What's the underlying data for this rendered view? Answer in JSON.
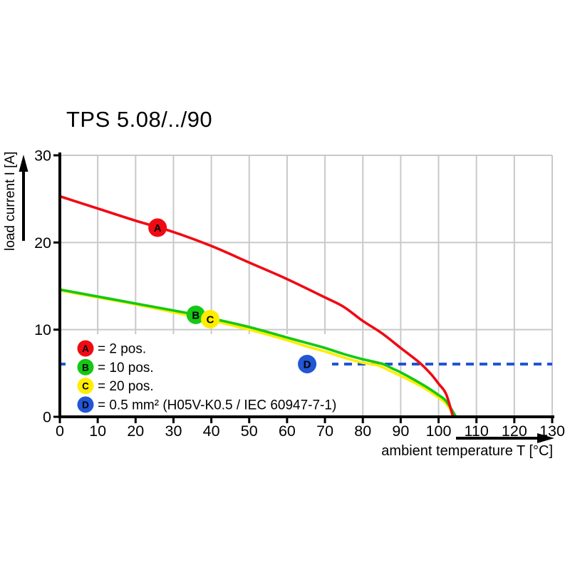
{
  "chart_data": {
    "type": "line",
    "title": "TPS 5.08/../90",
    "xlabel": "ambient temperature T [°C]",
    "ylabel": "load current I [A]",
    "xlim": [
      0,
      130
    ],
    "ylim": [
      0,
      30
    ],
    "xticks": [
      0,
      10,
      20,
      30,
      40,
      50,
      60,
      70,
      80,
      90,
      100,
      110,
      120,
      130
    ],
    "yticks": [
      0,
      10,
      20,
      30
    ],
    "grid": true,
    "grid_color": "#c9c9c9",
    "axis_color": "#000000",
    "background": "#ffffff",
    "legend_position": "bottom-left-inside",
    "series": [
      {
        "id": "A",
        "name": "2 pos.",
        "color": "#f00a14",
        "style": "solid",
        "points": [
          [
            0,
            25.3
          ],
          [
            10,
            23.9
          ],
          [
            20,
            22.5
          ],
          [
            30,
            21.2
          ],
          [
            40,
            19.6
          ],
          [
            50,
            17.7
          ],
          [
            60,
            15.8
          ],
          [
            70,
            13.7
          ],
          [
            75,
            12.6
          ],
          [
            80,
            11.0
          ],
          [
            85,
            9.6
          ],
          [
            90,
            7.9
          ],
          [
            95,
            6.2
          ],
          [
            98,
            4.9
          ],
          [
            100,
            3.8
          ],
          [
            102,
            2.6
          ],
          [
            103.8,
            0
          ]
        ]
      },
      {
        "id": "B",
        "name": "10 pos.",
        "color": "#14c814",
        "style": "solid",
        "points": [
          [
            0,
            14.6
          ],
          [
            10,
            13.8
          ],
          [
            20,
            13.0
          ],
          [
            30,
            12.2
          ],
          [
            36,
            11.7
          ],
          [
            40,
            11.3
          ],
          [
            50,
            10.3
          ],
          [
            60,
            9.1
          ],
          [
            65,
            8.5
          ],
          [
            70,
            7.9
          ],
          [
            75,
            7.2
          ],
          [
            80,
            6.6
          ],
          [
            85,
            6.1
          ],
          [
            88,
            5.5
          ],
          [
            90,
            5.1
          ],
          [
            95,
            3.9
          ],
          [
            98,
            3.1
          ],
          [
            100,
            2.5
          ],
          [
            102,
            1.8
          ],
          [
            104.6,
            0
          ]
        ]
      },
      {
        "id": "C",
        "name": "20 pos.",
        "color": "#ffed00",
        "style": "solid",
        "points": [
          [
            0,
            14.5
          ],
          [
            10,
            13.7
          ],
          [
            20,
            12.9
          ],
          [
            30,
            12.0
          ],
          [
            39.7,
            11.1
          ],
          [
            50,
            10.0
          ],
          [
            60,
            8.8
          ],
          [
            65,
            8.1
          ],
          [
            70,
            7.5
          ],
          [
            75,
            6.8
          ],
          [
            80,
            6.2
          ],
          [
            84,
            5.9
          ],
          [
            88,
            5.1
          ],
          [
            90,
            4.7
          ],
          [
            95,
            3.6
          ],
          [
            98,
            2.8
          ],
          [
            100,
            2.2
          ],
          [
            102,
            1.5
          ],
          [
            104.3,
            0
          ]
        ]
      },
      {
        "id": "D",
        "name": "0.5 mm² (H05V-K0.5 / IEC 60947-7-1)",
        "color": "#2156d4",
        "style": "dashed",
        "points": [
          [
            0,
            6.05
          ],
          [
            130,
            6.05
          ]
        ]
      }
    ],
    "markers": [
      {
        "letter": "A",
        "x": 25.8,
        "y": 21.7,
        "color": "#f00a14"
      },
      {
        "letter": "B",
        "x": 35.9,
        "y": 11.7,
        "color": "#14c814"
      },
      {
        "letter": "C",
        "x": 39.7,
        "y": 11.2,
        "color": "#ffed00"
      },
      {
        "letter": "D",
        "x": 65.3,
        "y": 6.05,
        "color": "#2156d4"
      }
    ],
    "legend": [
      {
        "letter": "A",
        "color": "#f00a14",
        "label": "= 2 pos."
      },
      {
        "letter": "B",
        "color": "#14c814",
        "label": "= 10 pos."
      },
      {
        "letter": "C",
        "color": "#ffed00",
        "label": "= 20 pos."
      },
      {
        "letter": "D",
        "color": "#2156d4",
        "label": "= 0.5 mm² (H05V-K0.5 / IEC 60947-7-1)"
      }
    ]
  }
}
